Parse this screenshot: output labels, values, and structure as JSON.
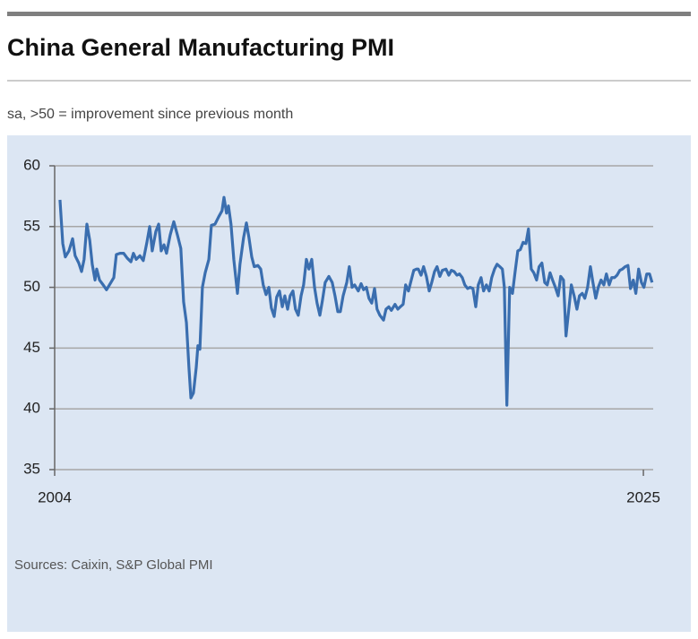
{
  "chart_data": {
    "type": "line",
    "title": "China General Manufacturing PMI",
    "subtitle": "sa, >50 = improvement since previous month",
    "source": "Sources: Caixin, S&P Global PMI",
    "xlim": [
      2004,
      2025.35
    ],
    "xticks": [
      2004,
      2025
    ],
    "ylim": [
      35,
      60
    ],
    "yticks": [
      35,
      40,
      45,
      50,
      55,
      60
    ],
    "grid": true,
    "x": [
      2004.19,
      2004.29,
      2004.38,
      2004.51,
      2004.64,
      2004.73,
      2004.86,
      2004.96,
      2005.05,
      2005.15,
      2005.25,
      2005.34,
      2005.44,
      2005.5,
      2005.6,
      2005.73,
      2005.85,
      2005.98,
      2006.11,
      2006.2,
      2006.33,
      2006.46,
      2006.59,
      2006.72,
      2006.81,
      2006.91,
      2007.04,
      2007.16,
      2007.29,
      2007.39,
      2007.48,
      2007.61,
      2007.71,
      2007.8,
      2007.9,
      2007.99,
      2008.12,
      2008.25,
      2008.38,
      2008.5,
      2008.6,
      2008.7,
      2008.79,
      2008.86,
      2008.95,
      2009.05,
      2009.11,
      2009.18,
      2009.27,
      2009.37,
      2009.5,
      2009.59,
      2009.72,
      2009.85,
      2009.97,
      2010.04,
      2010.13,
      2010.2,
      2010.29,
      2010.39,
      2010.52,
      2010.61,
      2010.74,
      2010.84,
      2010.93,
      2011.03,
      2011.12,
      2011.25,
      2011.35,
      2011.44,
      2011.54,
      2011.64,
      2011.73,
      2011.83,
      2011.92,
      2012.02,
      2012.12,
      2012.21,
      2012.31,
      2012.4,
      2012.5,
      2012.59,
      2012.69,
      2012.79,
      2012.88,
      2012.98,
      2013.07,
      2013.17,
      2013.27,
      2013.36,
      2013.46,
      2013.55,
      2013.65,
      2013.78,
      2013.9,
      2014.0,
      2014.1,
      2014.19,
      2014.29,
      2014.42,
      2014.51,
      2014.61,
      2014.7,
      2014.83,
      2014.93,
      2015.02,
      2015.12,
      2015.21,
      2015.31,
      2015.41,
      2015.5,
      2015.6,
      2015.73,
      2015.82,
      2015.92,
      2016.01,
      2016.14,
      2016.24,
      2016.33,
      2016.43,
      2016.52,
      2016.62,
      2016.72,
      2016.81,
      2016.91,
      2016.97,
      2017.07,
      2017.16,
      2017.26,
      2017.36,
      2017.45,
      2017.55,
      2017.64,
      2017.74,
      2017.83,
      2017.96,
      2018.06,
      2018.15,
      2018.25,
      2018.35,
      2018.44,
      2018.54,
      2018.63,
      2018.73,
      2018.82,
      2018.92,
      2019.02,
      2019.11,
      2019.21,
      2019.3,
      2019.4,
      2019.5,
      2019.59,
      2019.69,
      2019.78,
      2019.88,
      2019.97,
      2020.04,
      2020.13,
      2020.23,
      2020.33,
      2020.42,
      2020.52,
      2020.61,
      2020.71,
      2020.81,
      2020.9,
      2021.0,
      2021.09,
      2021.19,
      2021.28,
      2021.38,
      2021.48,
      2021.57,
      2021.67,
      2021.76,
      2021.86,
      2021.96,
      2022.05,
      2022.15,
      2022.24,
      2022.34,
      2022.43,
      2022.53,
      2022.63,
      2022.72,
      2022.82,
      2022.91,
      2023.01,
      2023.11,
      2023.2,
      2023.3,
      2023.39,
      2023.49,
      2023.59,
      2023.68,
      2023.78,
      2023.87,
      2023.97,
      2024.06,
      2024.16,
      2024.25,
      2024.35,
      2024.45,
      2024.54,
      2024.64,
      2024.73,
      2024.83,
      2024.93,
      2025.02,
      2025.12,
      2025.22,
      2025.31
    ],
    "series": [
      {
        "name": "China General Manufacturing PMI",
        "color": "#3a6eaf",
        "values": [
          57.2,
          53.6,
          52.5,
          53.0,
          54.0,
          52.6,
          52.0,
          51.3,
          52.3,
          55.2,
          53.9,
          51.9,
          50.6,
          51.5,
          50.6,
          50.2,
          49.8,
          50.3,
          50.8,
          52.7,
          52.8,
          52.8,
          52.4,
          52.1,
          52.8,
          52.3,
          52.6,
          52.2,
          53.7,
          55.0,
          53.0,
          54.6,
          55.2,
          53.0,
          53.5,
          52.8,
          54.3,
          55.4,
          54.3,
          53.2,
          48.8,
          47.1,
          43.4,
          40.9,
          41.3,
          43.4,
          45.2,
          44.9,
          50.0,
          51.2,
          52.3,
          55.1,
          55.2,
          55.8,
          56.3,
          57.4,
          56.1,
          56.7,
          55.2,
          52.3,
          49.5,
          51.9,
          54.1,
          55.3,
          54.1,
          52.5,
          51.7,
          51.8,
          51.5,
          50.2,
          49.4,
          50.0,
          48.3,
          47.6,
          49.2,
          49.7,
          48.4,
          49.3,
          48.2,
          49.3,
          49.7,
          48.2,
          47.7,
          49.3,
          50.2,
          52.3,
          51.5,
          52.3,
          50.0,
          48.7,
          47.7,
          48.9,
          50.4,
          50.9,
          50.4,
          49.3,
          48.0,
          48.0,
          49.3,
          50.4,
          51.7,
          50.0,
          50.2,
          49.7,
          50.3,
          49.8,
          50.0,
          49.1,
          48.7,
          49.9,
          48.2,
          47.7,
          47.3,
          48.2,
          48.4,
          48.1,
          48.6,
          48.2,
          48.4,
          48.6,
          50.2,
          49.7,
          50.6,
          51.4,
          51.5,
          51.5,
          51.0,
          51.7,
          50.9,
          49.7,
          50.4,
          51.3,
          51.7,
          50.9,
          51.4,
          51.5,
          51.0,
          51.4,
          51.3,
          51.0,
          51.1,
          50.8,
          50.2,
          49.9,
          50.0,
          49.9,
          48.4,
          50.2,
          50.8,
          49.7,
          50.2,
          49.7,
          50.8,
          51.5,
          51.9,
          51.7,
          51.5,
          50.0,
          40.3,
          50.0,
          49.5,
          51.2,
          53.0,
          53.1,
          53.7,
          53.6,
          54.8,
          51.5,
          51.2,
          50.6,
          51.7,
          52.0,
          50.4,
          50.2,
          51.2,
          50.6,
          50.0,
          49.3,
          50.9,
          50.6,
          46.0,
          48.2,
          50.2,
          49.3,
          48.2,
          49.3,
          49.5,
          49.1,
          50.0,
          51.7,
          50.4,
          49.1,
          50.0,
          50.6,
          50.2,
          51.1,
          50.2,
          50.8,
          50.8,
          51.0,
          51.4,
          51.5,
          51.7,
          51.8,
          49.9,
          50.6,
          49.5,
          51.5,
          50.4,
          50.0,
          51.1,
          51.1,
          50.4
        ]
      }
    ]
  }
}
